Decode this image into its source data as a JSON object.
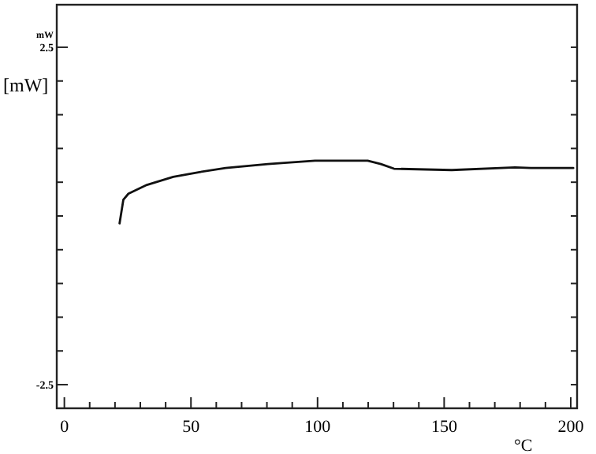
{
  "chart_data": {
    "type": "line",
    "xlabel": "°C",
    "ylabel": "[mW]",
    "annotations": [
      "mW"
    ],
    "xlim": [
      -3,
      202.5
    ],
    "ylim": [
      -2.85,
      3.13
    ],
    "xticks": [
      0,
      {
        "value": 10,
        "label": null
      },
      {
        "value": 20,
        "label": null
      },
      {
        "value": 30,
        "label": null
      },
      {
        "value": 40,
        "label": null
      },
      50,
      {
        "value": 60,
        "label": null
      },
      {
        "value": 70,
        "label": null
      },
      {
        "value": 80,
        "label": null
      },
      {
        "value": 90,
        "label": null
      },
      100,
      {
        "value": 110,
        "label": null
      },
      {
        "value": 120,
        "label": null
      },
      {
        "value": 130,
        "label": null
      },
      {
        "value": 140,
        "label": null
      },
      150,
      {
        "value": 160,
        "label": null
      },
      {
        "value": 170,
        "label": null
      },
      {
        "value": 180,
        "label": null
      },
      {
        "value": 190,
        "label": null
      },
      200
    ],
    "yticks": [
      {
        "value": -2.5,
        "label": "-2.5"
      },
      {
        "value": -2,
        "label": null
      },
      {
        "value": -1.5,
        "label": null
      },
      {
        "value": -1,
        "label": null
      },
      {
        "value": -0.5,
        "label": null
      },
      {
        "value": 0,
        "label": null
      },
      {
        "value": 0.5,
        "label": null
      },
      {
        "value": 1,
        "label": null
      },
      {
        "value": 1.5,
        "label": null
      },
      {
        "value": 2,
        "label": null
      },
      {
        "value": 2.5,
        "label": "2.5"
      }
    ],
    "grid": false,
    "marker": "none",
    "line_style": "solid",
    "series": [
      {
        "color": "#111111",
        "x": [
          21.8,
          23.3,
          25.3,
          32.6,
          43,
          53.4,
          63.7,
          80.4,
          99,
          119.8,
          125,
          130.2,
          153,
          178,
          184.2,
          201
        ],
        "values": [
          -0.11,
          0.24,
          0.33,
          0.46,
          0.58,
          0.65,
          0.71,
          0.77,
          0.82,
          0.82,
          0.77,
          0.7,
          0.68,
          0.72,
          0.71,
          0.71
        ]
      }
    ]
  }
}
